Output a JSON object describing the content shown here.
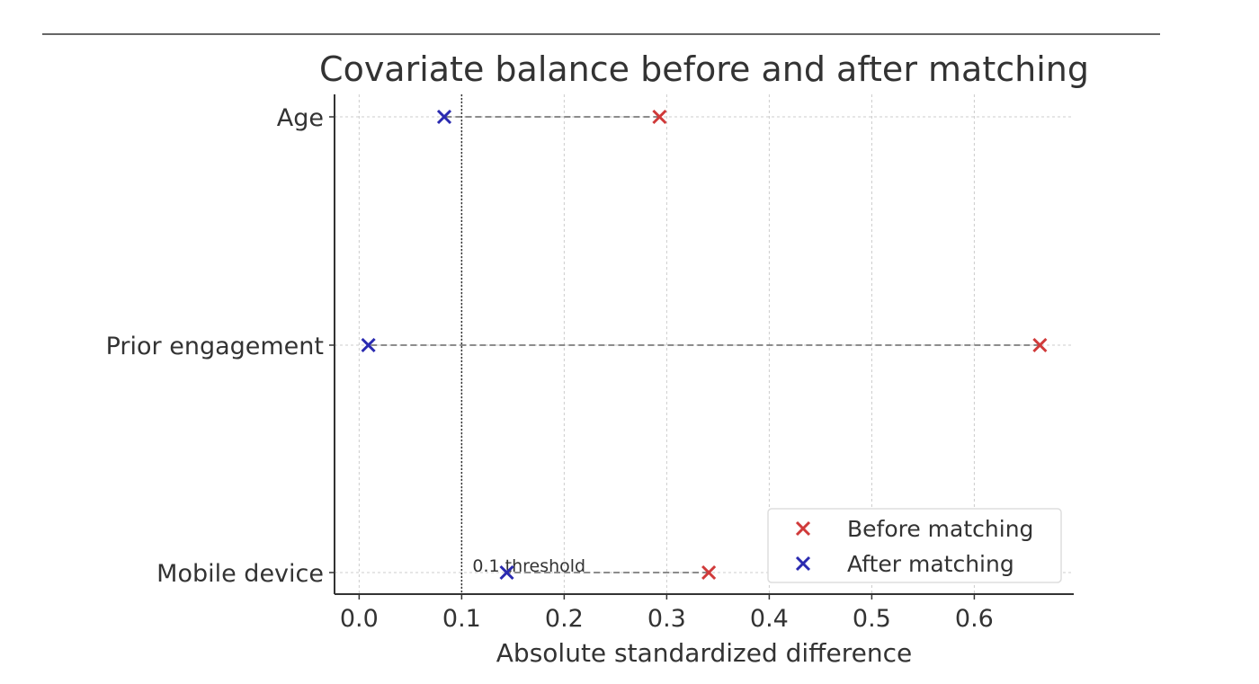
{
  "chart_data": {
    "type": "scatter",
    "title": "Covariate balance before and after matching",
    "xlabel": "Absolute standardized difference",
    "ylabel": "",
    "xlim": [
      -0.024,
      0.697
    ],
    "xticks": [
      "0.0",
      "0.1",
      "0.2",
      "0.3",
      "0.4",
      "0.5",
      "0.6"
    ],
    "categories": [
      "Age",
      "Prior engagement",
      "Mobile device"
    ],
    "grid": true,
    "legend_position": "bottom-right",
    "threshold": {
      "value": 0.1,
      "label": "0.1 threshold"
    },
    "series": [
      {
        "name": "Before matching",
        "color": "#d03a3a",
        "values": [
          0.293,
          0.664,
          0.341
        ]
      },
      {
        "name": "After matching",
        "color": "#2a2ab0",
        "values": [
          0.083,
          0.009,
          0.144
        ]
      }
    ]
  }
}
